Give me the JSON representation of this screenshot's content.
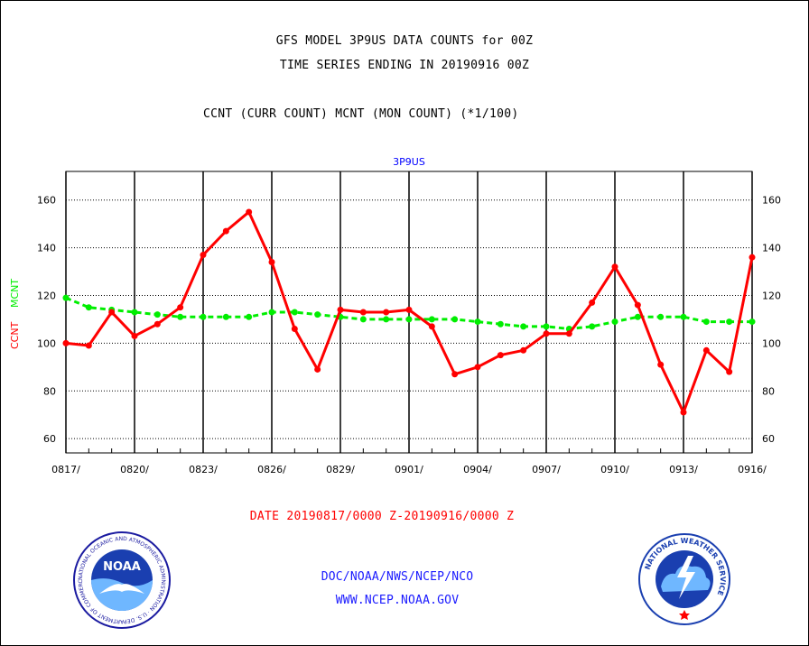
{
  "header": {
    "title_line1": "GFS MODEL 3P9US DATA COUNTS for 00Z",
    "title_line2": "TIME SERIES ENDING IN 20190916 00Z",
    "subtitle": "CCNT (CURR COUNT) MCNT (MON COUNT) (*1/100)"
  },
  "footer": {
    "date_range": "DATE 20190817/0000 Z-20190916/0000 Z",
    "org_path": "DOC/NOAA/NWS/NCEP/NCO",
    "website": "WWW.NCEP.NOAA.GOV"
  },
  "logos": {
    "noaa_text": "NOAA",
    "noaa_ring_text": "NATIONAL OCEANIC AND ATMOSPHERIC ADMINISTRATION · U.S. DEPARTMENT OF COMMERCE",
    "nws_ring_text": "NATIONAL WEATHER SERVICE"
  },
  "colors": {
    "ccnt": "#ff0000",
    "mcnt": "#00ee00",
    "panel_title": "#0000ff",
    "footer_text": "#1a1aff"
  },
  "chart_data": {
    "type": "line",
    "title": "3P9US",
    "ylabel_ccnt": "CCNT",
    "ylabel_mcnt": "MCNT",
    "ylim": [
      54,
      172
    ],
    "yticks": [
      60,
      80,
      100,
      120,
      140,
      160
    ],
    "grid": true,
    "x_tick_labels": [
      "0817/",
      "0820/",
      "0823/",
      "0826/",
      "0829/",
      "0901/",
      "0904/",
      "0907/",
      "0910/",
      "0913/",
      "0916/"
    ],
    "x": [
      "0817",
      "0818",
      "0819",
      "0820",
      "0821",
      "0822",
      "0823",
      "0824",
      "0825",
      "0826",
      "0827",
      "0828",
      "0829",
      "0830",
      "0831",
      "0901",
      "0902",
      "0903",
      "0904",
      "0905",
      "0906",
      "0907",
      "0908",
      "0909",
      "0910",
      "0911",
      "0912",
      "0913",
      "0914",
      "0915",
      "0916"
    ],
    "series": [
      {
        "name": "CCNT",
        "color": "#ff0000",
        "style": "solid",
        "values": [
          100,
          99,
          113,
          103,
          108,
          115,
          137,
          147,
          155,
          134,
          106,
          89,
          114,
          113,
          113,
          114,
          107,
          87,
          90,
          95,
          97,
          104,
          104,
          117,
          132,
          116,
          91,
          71,
          97,
          88,
          136
        ]
      },
      {
        "name": "MCNT",
        "color": "#00ee00",
        "style": "dashed",
        "values": [
          119,
          115,
          114,
          113,
          112,
          111,
          111,
          111,
          111,
          113,
          113,
          112,
          111,
          110,
          110,
          110,
          110,
          110,
          109,
          108,
          107,
          107,
          106,
          107,
          109,
          111,
          111,
          111,
          109,
          109,
          109
        ]
      }
    ]
  }
}
